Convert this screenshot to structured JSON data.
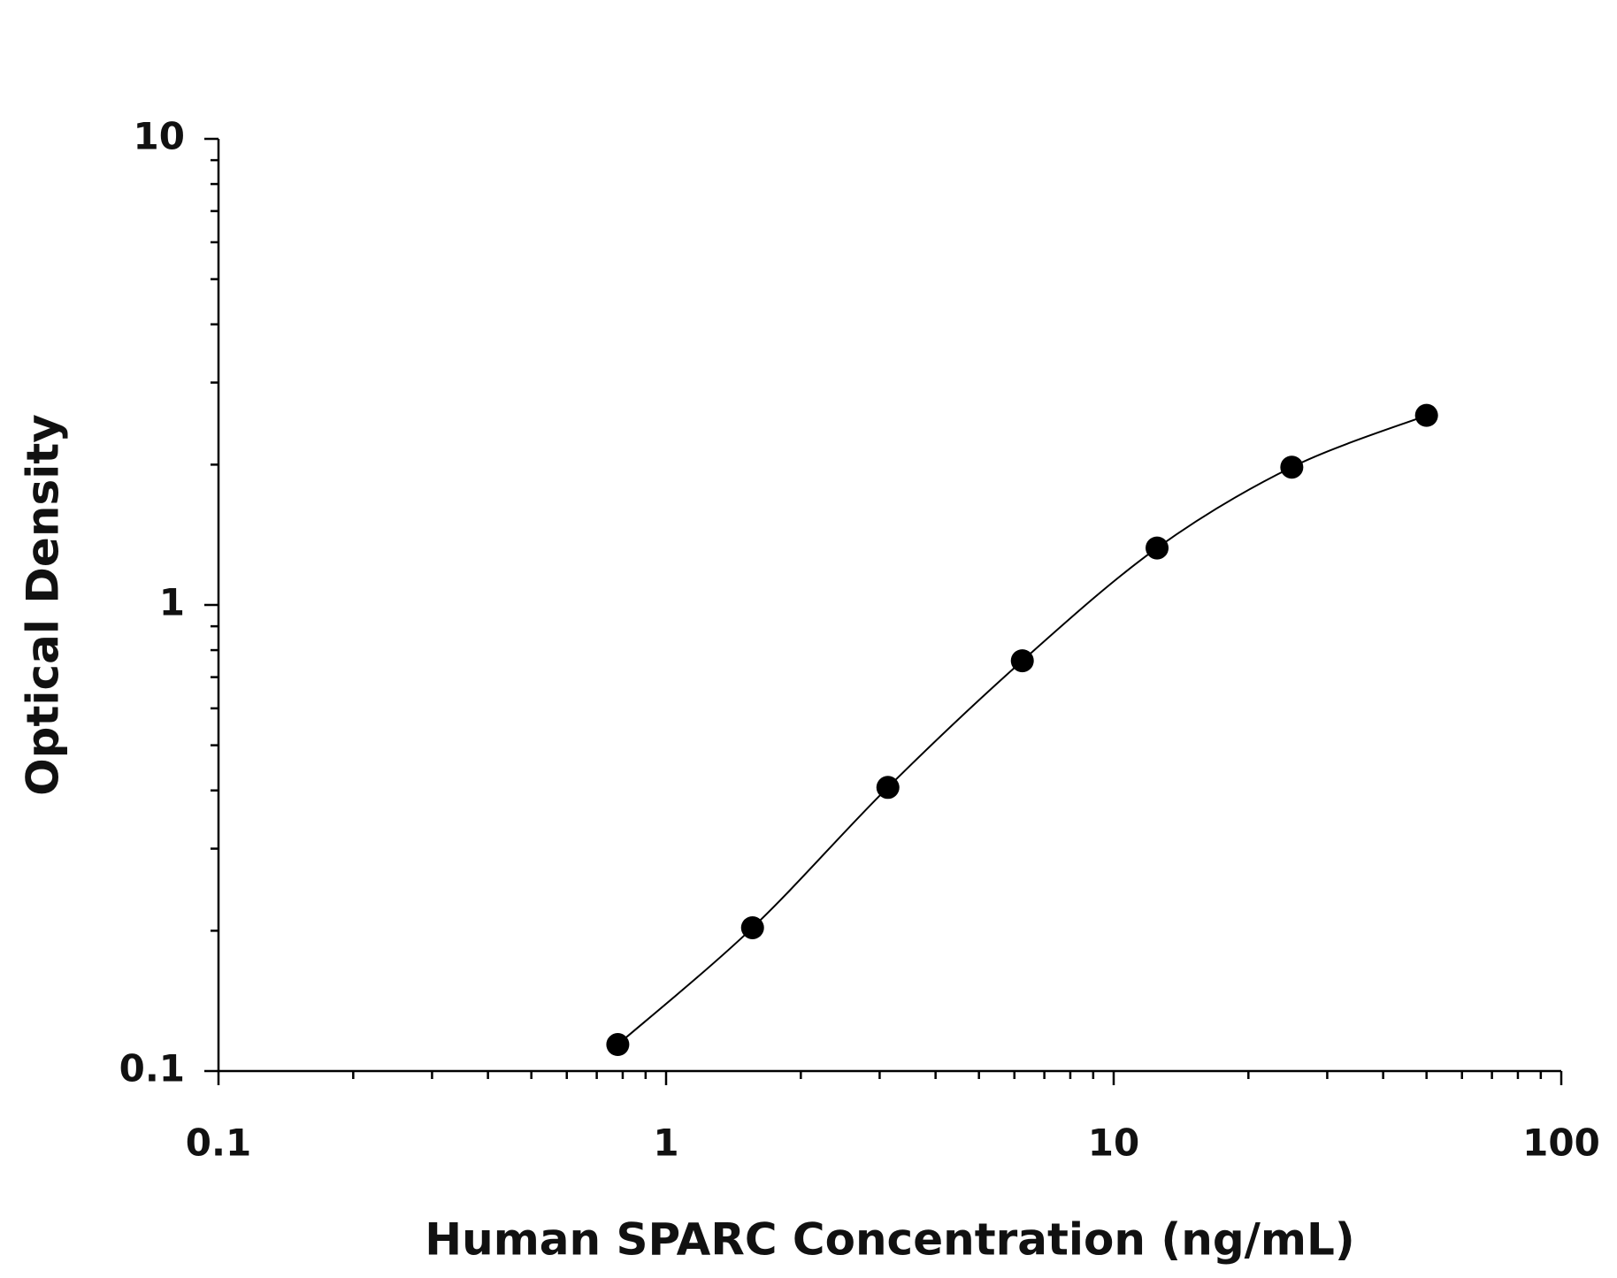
{
  "chart_data": {
    "type": "line",
    "x_label": "Human SPARC Concentration (ng/mL)",
    "y_label": "Optical Density",
    "x": [
      0.78,
      1.56,
      3.13,
      6.25,
      12.5,
      25,
      50
    ],
    "series": [
      {
        "color": "#000000",
        "values": [
          0.114,
          0.203,
          0.406,
          0.759,
          1.325,
          1.975,
          2.551
        ]
      }
    ],
    "xlim": [
      0.1,
      100
    ],
    "xticks": [
      0.1,
      1,
      10,
      100
    ],
    "ylim": [
      0.1,
      10
    ],
    "yticks": [
      0.1,
      1,
      10
    ],
    "xscale": "log",
    "yscale": "log",
    "minor_ticks": true,
    "markers": true,
    "smooth": true
  }
}
